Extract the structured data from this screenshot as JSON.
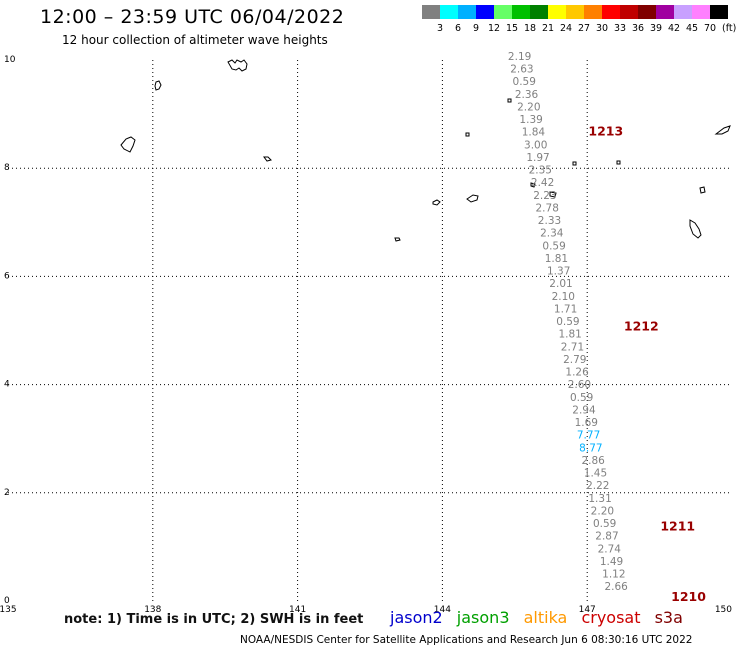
{
  "header": {
    "title": "12:00 – 23:59 UTC 06/04/2022",
    "subtitle": "12 hour collection of altimeter wave heights"
  },
  "color_scale": {
    "unit": "(ft)",
    "colors": [
      "#808080",
      "#00ffff",
      "#00b0ff",
      "#0000ff",
      "#66ff66",
      "#00c000",
      "#008000",
      "#ffff00",
      "#ffc800",
      "#ff8000",
      "#ff0000",
      "#c00000",
      "#800000",
      "#a000a0",
      "#c8a0ff",
      "#ff80ff",
      "#000000"
    ],
    "labels": [
      "3",
      "6",
      "9",
      "12",
      "15",
      "18",
      "21",
      "24",
      "27",
      "30",
      "33",
      "36",
      "39",
      "42",
      "45",
      "70"
    ]
  },
  "map": {
    "lon_range": [
      135,
      150
    ],
    "lat_range": [
      0,
      10
    ],
    "lon_ticks": [
      "135",
      "138",
      "141",
      "144",
      "147",
      "150"
    ],
    "lat_ticks": [
      "10",
      "8",
      "6",
      "4",
      "2",
      "0"
    ],
    "grid": "dotted"
  },
  "track": {
    "values": [
      "2.19",
      "2.63",
      "0.59",
      "2.36",
      "2.20",
      "1.39",
      "1.84",
      "3.00",
      "1.97",
      "2.35",
      "2.42",
      "2.23",
      "2.78",
      "2.33",
      "2.34",
      "0.59",
      "1.81",
      "1.37",
      "2.01",
      "2.10",
      "1.71",
      "0.59",
      "1.81",
      "2.71",
      "2.79",
      "1.26",
      "2.60",
      "0.59",
      "2.94",
      "1.69",
      "7.77",
      "8.77",
      "2.86",
      "1.45",
      "2.22",
      "1.31",
      "2.20",
      "0.59",
      "2.87",
      "2.74",
      "1.49",
      "1.12",
      "2.66"
    ],
    "colors": {
      "default": "#808080",
      "highlight_6_9ft": "#00b0ff"
    },
    "highlight": [
      "7.77",
      "8.77"
    ]
  },
  "passes": [
    {
      "label": "1213",
      "lat": 8.6
    },
    {
      "label": "1212",
      "lat": 5.0
    },
    {
      "label": "1211",
      "lat": 1.3
    },
    {
      "label": "1210",
      "lat": 0.0
    }
  ],
  "footer": {
    "note": "note:  1) Time is in UTC;  2) SWH is in feet",
    "satellites": [
      {
        "name": "jason2",
        "color": "#0000cc"
      },
      {
        "name": "jason3",
        "color": "#00a000"
      },
      {
        "name": "altika",
        "color": "#ff9900"
      },
      {
        "name": "cryosat",
        "color": "#cc0000"
      },
      {
        "name": "s3a",
        "color": "#800000"
      }
    ],
    "credit": "NOAA/NESDIS Center for Satellite Applications and Research    Jun  6 08:30:16 UTC 2022"
  }
}
